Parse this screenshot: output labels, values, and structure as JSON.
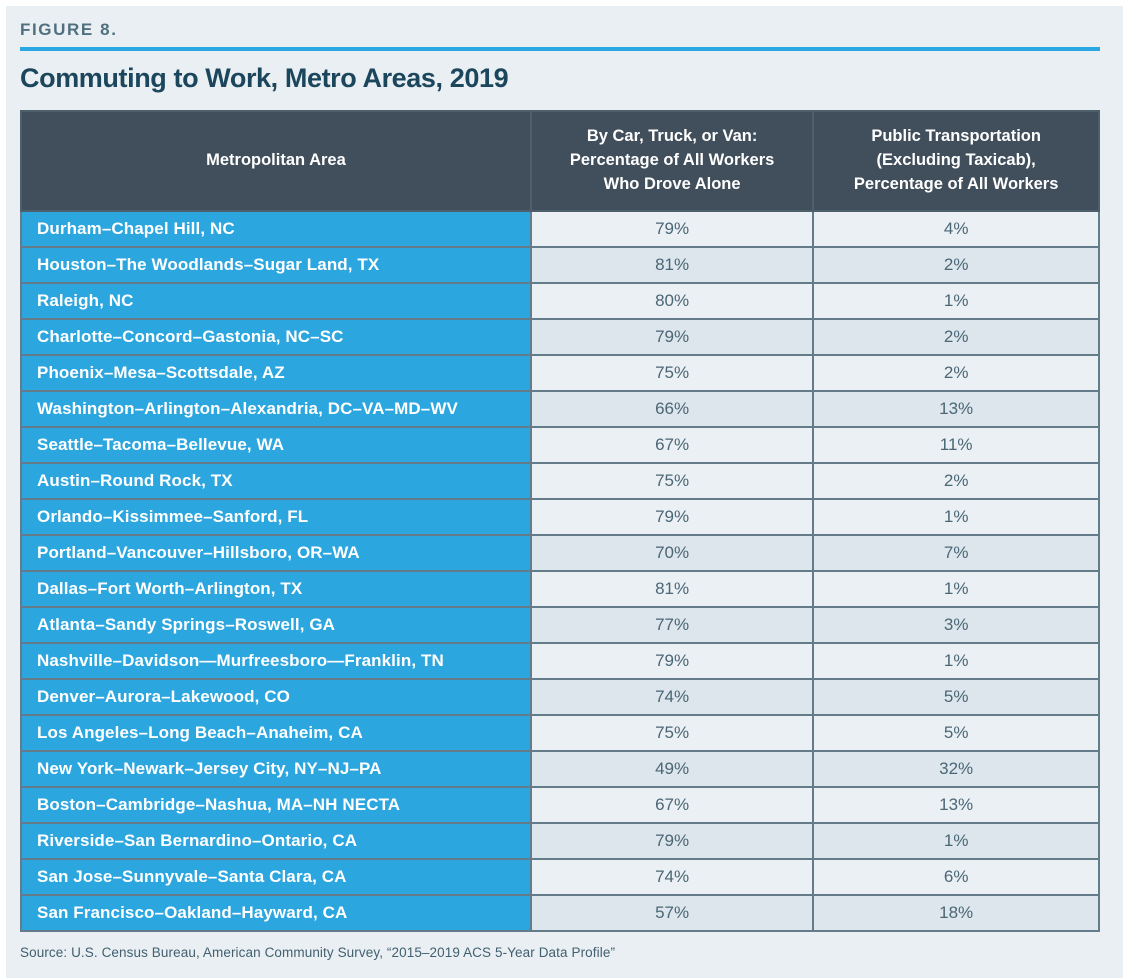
{
  "figure": {
    "label": "FIGURE 8.",
    "title": "Commuting to Work, Metro Areas, 2019",
    "source": "Source: U.S. Census Bureau, American Community Survey, “2015–2019 ACS 5-Year Data Profile”"
  },
  "table": {
    "columns": [
      "Metropolitan Area",
      "By Car, Truck, or Van:\nPercentage of All Workers\nWho Drove Alone",
      "Public Transportation\n(Excluding Taxicab),\nPercentage of All Workers"
    ],
    "rows": [
      {
        "metro": "Durham–Chapel Hill, NC",
        "drove_alone": "79%",
        "public_transit": "4%",
        "shaded": false
      },
      {
        "metro": "Houston–The Woodlands–Sugar Land, TX",
        "drove_alone": "81%",
        "public_transit": "2%",
        "shaded": true
      },
      {
        "metro": "Raleigh, NC",
        "drove_alone": "80%",
        "public_transit": "1%",
        "shaded": false
      },
      {
        "metro": "Charlotte–Concord–Gastonia, NC–SC",
        "drove_alone": "79%",
        "public_transit": "2%",
        "shaded": true
      },
      {
        "metro": "Phoenix–Mesa–Scottsdale, AZ",
        "drove_alone": "75%",
        "public_transit": "2%",
        "shaded": false
      },
      {
        "metro": "Washington–Arlington–Alexandria, DC–VA–MD–WV",
        "drove_alone": "66%",
        "public_transit": "13%",
        "shaded": true
      },
      {
        "metro": "Seattle–Tacoma–Bellevue, WA",
        "drove_alone": "67%",
        "public_transit": "11%",
        "shaded": false
      },
      {
        "metro": "Austin–Round Rock, TX",
        "drove_alone": "75%",
        "public_transit": "2%",
        "shaded": false
      },
      {
        "metro": "Orlando–Kissimmee–Sanford, FL",
        "drove_alone": "79%",
        "public_transit": "1%",
        "shaded": false
      },
      {
        "metro": "Portland–Vancouver–Hillsboro, OR–WA",
        "drove_alone": "70%",
        "public_transit": "7%",
        "shaded": true
      },
      {
        "metro": "Dallas–Fort Worth–Arlington, TX",
        "drove_alone": "81%",
        "public_transit": "1%",
        "shaded": false
      },
      {
        "metro": "Atlanta–Sandy Springs–Roswell, GA",
        "drove_alone": "77%",
        "public_transit": "3%",
        "shaded": true
      },
      {
        "metro": "Nashville–Davidson—Murfreesboro—Franklin, TN",
        "drove_alone": "79%",
        "public_transit": "1%",
        "shaded": false
      },
      {
        "metro": "Denver–Aurora–Lakewood, CO",
        "drove_alone": "74%",
        "public_transit": "5%",
        "shaded": true
      },
      {
        "metro": "Los Angeles–Long Beach–Anaheim, CA",
        "drove_alone": "75%",
        "public_transit": "5%",
        "shaded": false
      },
      {
        "metro": "New York–Newark–Jersey City, NY–NJ–PA",
        "drove_alone": "49%",
        "public_transit": "32%",
        "shaded": true
      },
      {
        "metro": "Boston–Cambridge–Nashua, MA–NH NECTA",
        "drove_alone": "67%",
        "public_transit": "13%",
        "shaded": false
      },
      {
        "metro": "Riverside–San Bernardino–Ontario, CA",
        "drove_alone": "79%",
        "public_transit": "1%",
        "shaded": true
      },
      {
        "metro": "San Jose–Sunnyvale–Santa Clara, CA",
        "drove_alone": "74%",
        "public_transit": "6%",
        "shaded": false
      },
      {
        "metro": "San Francisco–Oakland–Hayward, CA",
        "drove_alone": "57%",
        "public_transit": "18%",
        "shaded": true
      }
    ]
  },
  "chart_data": {
    "type": "table",
    "title": "Commuting to Work, Metro Areas, 2019",
    "categories": [
      "Durham–Chapel Hill, NC",
      "Houston–The Woodlands–Sugar Land, TX",
      "Raleigh, NC",
      "Charlotte–Concord–Gastonia, NC–SC",
      "Phoenix–Mesa–Scottsdale, AZ",
      "Washington–Arlington–Alexandria, DC–VA–MD–WV",
      "Seattle–Tacoma–Bellevue, WA",
      "Austin–Round Rock, TX",
      "Orlando–Kissimmee–Sanford, FL",
      "Portland–Vancouver–Hillsboro, OR–WA",
      "Dallas–Fort Worth–Arlington, TX",
      "Atlanta–Sandy Springs–Roswell, GA",
      "Nashville–Davidson—Murfreesboro—Franklin, TN",
      "Denver–Aurora–Lakewood, CO",
      "Los Angeles–Long Beach–Anaheim, CA",
      "New York–Newark–Jersey City, NY–NJ–PA",
      "Boston–Cambridge–Nashua, MA–NH NECTA",
      "Riverside–San Bernardino–Ontario, CA",
      "San Jose–Sunnyvale–Santa Clara, CA",
      "San Francisco–Oakland–Hayward, CA"
    ],
    "series": [
      {
        "name": "By Car, Truck, or Van: Percentage of All Workers Who Drove Alone",
        "values": [
          79,
          81,
          80,
          79,
          75,
          66,
          67,
          75,
          79,
          70,
          81,
          77,
          79,
          74,
          75,
          49,
          67,
          79,
          74,
          57
        ]
      },
      {
        "name": "Public Transportation (Excluding Taxicab), Percentage of All Workers",
        "values": [
          4,
          2,
          1,
          2,
          2,
          13,
          11,
          2,
          1,
          7,
          1,
          3,
          1,
          5,
          5,
          32,
          13,
          1,
          6,
          18
        ]
      }
    ],
    "units": "percent"
  },
  "colors": {
    "panel_background": "#e9eff3",
    "accent_blue": "#2aa7e0",
    "header_background": "#414e5b",
    "metro_cell_blue": "#2ca6df",
    "row_light": "#eaf0f4",
    "row_shaded": "#dce6ec",
    "title_text": "#1b465c",
    "value_text": "#4b6675",
    "border": "#647c89"
  }
}
